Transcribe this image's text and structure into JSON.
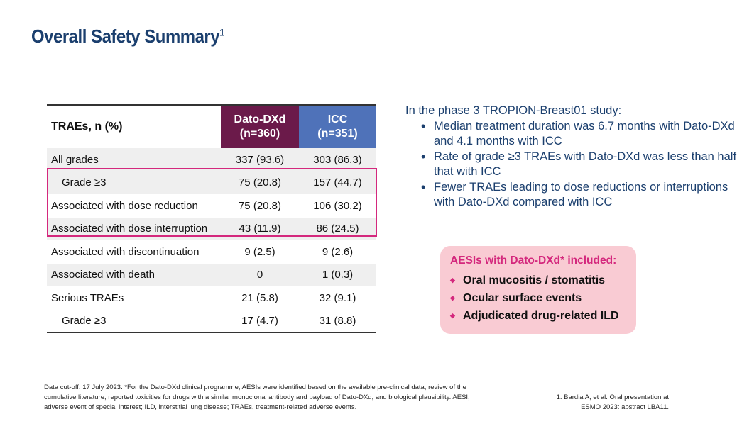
{
  "title": "Overall Safety Summary",
  "title_sup": "1",
  "table": {
    "headers": {
      "label": "TRAEs, n (%)",
      "dato": "Dato-DXd",
      "dato_n": "(n=360)",
      "icc": "ICC",
      "icc_n": "(n=351)"
    },
    "rows": [
      {
        "label": "All grades",
        "dato": "337 (93.6)",
        "icc": "303 (86.3)"
      },
      {
        "label": "Grade ≥3",
        "dato": "75 (20.8)",
        "icc": "157 (44.7)"
      },
      {
        "label": "Associated with dose reduction",
        "dato": "75 (20.8)",
        "icc": "106 (30.2)"
      },
      {
        "label": "Associated with dose interruption",
        "dato": "43 (11.9)",
        "icc": "86 (24.5)"
      },
      {
        "label": "Associated with discontinuation",
        "dato": "9 (2.5)",
        "icc": "9 (2.6)"
      },
      {
        "label": "Associated with death",
        "dato": "0",
        "icc": "1 (0.3)"
      },
      {
        "label": "Serious TRAEs",
        "dato": "21 (5.8)",
        "icc": "32 (9.1)"
      },
      {
        "label": "Grade ≥3",
        "dato": "17 (4.7)",
        "icc": "31 (8.8)"
      }
    ]
  },
  "summary": {
    "intro": "In the phase 3 TROPION-Breast01 study:",
    "bullets": [
      "Median treatment duration was 6.7 months with Dato-DXd and 4.1 months with ICC",
      "Rate of grade ≥3 TRAEs with Dato-DXd was less than half that with ICC",
      "Fewer TRAEs leading to dose reductions or interruptions with Dato-DXd compared with ICC"
    ]
  },
  "aesi": {
    "heading": "AESIs with Dato-DXd* included:",
    "items": [
      "Oral mucositis / stomatitis",
      "Ocular surface events",
      "Adjudicated drug-related ILD"
    ]
  },
  "footnote": "Data cut-off: 17 July 2023. *For the Dato-DXd clinical programme, AESIs were identified based on the available pre-clinical data, review of the cumulative literature, reported toxicities for drugs with a similar monoclonal antibody and payload of Dato-DXd, and biological plausibility. AESI, adverse event of special interest; ILD, interstitial lung disease; TRAEs, treatment-related adverse events.",
  "reference": {
    "line1": "1. Bardia A, et al. Oral presentation at",
    "line2": "ESMO 2023: abstract LBA11."
  },
  "colors": {
    "title": "#1b3f6e",
    "dato": "#6b1a4a",
    "icc": "#4f72b9",
    "highlight": "#d4287d",
    "aesi_bg": "#f9cbd3"
  }
}
